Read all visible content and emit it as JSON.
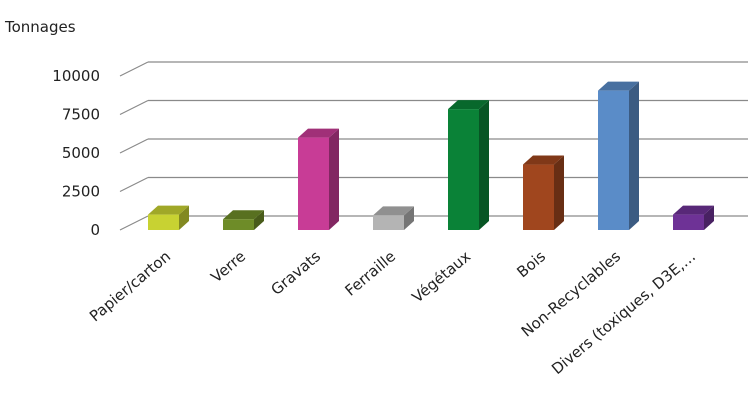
{
  "chart_data": {
    "type": "bar",
    "title": "",
    "ylabel": "Tonnages",
    "xlabel": "",
    "ylim": [
      0,
      10000
    ],
    "yticks": [
      0,
      2500,
      5000,
      7500,
      10000
    ],
    "ytick_labels": [
      "0",
      "2500",
      "5000",
      "7500",
      "10000"
    ],
    "grid": true,
    "categories": [
      "Papier/carton",
      "Verre",
      "Gravats",
      "Ferraille",
      "Végétaux",
      "Bois",
      "Non-Recyclables",
      "Divers (toxiques, D3E,…"
    ],
    "values": [
      1000,
      700,
      6000,
      950,
      7850,
      4250,
      9050,
      1000
    ],
    "colors": [
      "#c8d232",
      "#6e8c28",
      "#c83c96",
      "#b4b4b4",
      "#0a8237",
      "#a0461e",
      "#5a8cc8",
      "#6e3296"
    ]
  }
}
